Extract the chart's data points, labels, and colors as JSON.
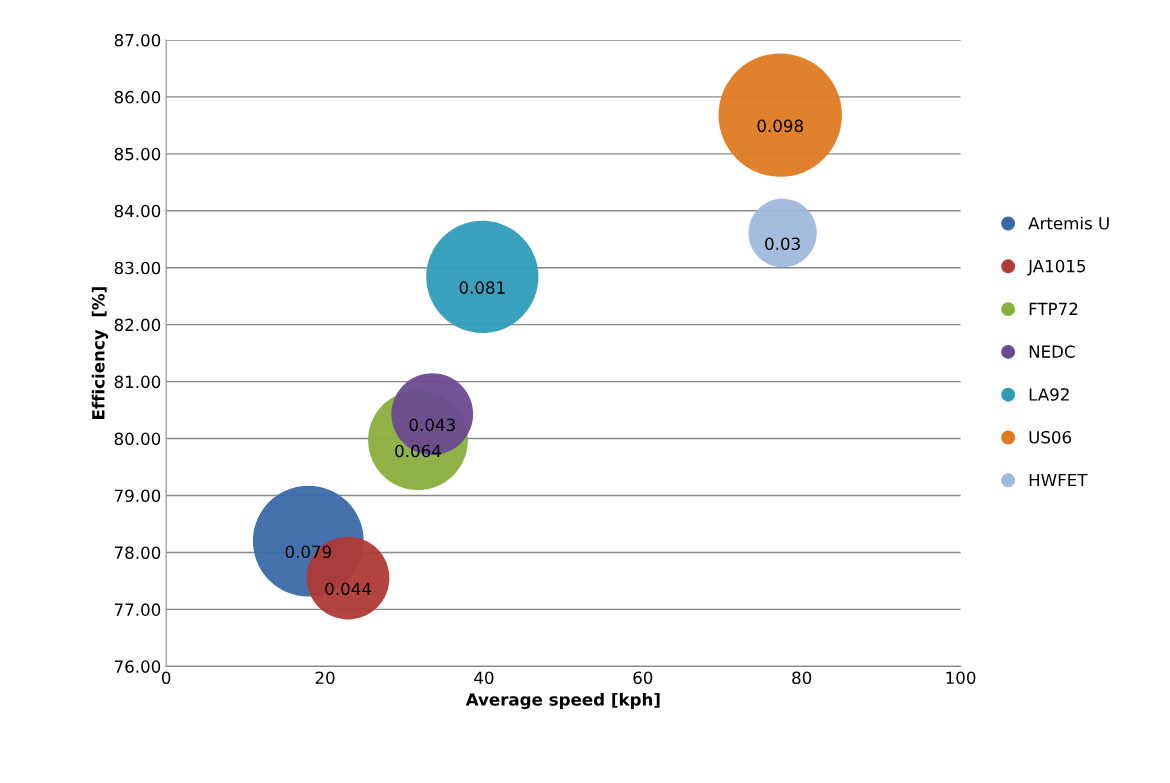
{
  "chart_data": {
    "type": "bubble",
    "xlabel": "Average speed [kph]",
    "ylabel": "Efficiency  [%]",
    "xlim": [
      0,
      100
    ],
    "xticks": [
      0,
      20,
      40,
      60,
      80,
      100
    ],
    "ylim": [
      76,
      87
    ],
    "yticks": [
      {
        "value": 76,
        "label": "76.00"
      },
      {
        "value": 77,
        "label": "77.00"
      },
      {
        "value": 78,
        "label": "78.00"
      },
      {
        "value": 79,
        "label": "79.00"
      },
      {
        "value": 80,
        "label": "80.00"
      },
      {
        "value": 81,
        "label": "81.00"
      },
      {
        "value": 82,
        "label": "82.00"
      },
      {
        "value": 83,
        "label": "83.00"
      },
      {
        "value": 84,
        "label": "84.00"
      },
      {
        "value": 85,
        "label": "85.00"
      },
      {
        "value": 86,
        "label": "86.00"
      },
      {
        "value": 87,
        "label": "87.00"
      }
    ],
    "grid": "y",
    "legend": "right",
    "series": [
      {
        "name": "Artemis U",
        "color": "#3a6aa8",
        "x": [
          17.9
        ],
        "values": [
          78.2
        ],
        "sizes": [
          0.079
        ],
        "value_labels": [
          "0.079"
        ]
      },
      {
        "name": "JA1015",
        "color": "#b03a36",
        "x": [
          22.9
        ],
        "values": [
          77.55
        ],
        "sizes": [
          0.044
        ],
        "value_labels": [
          "0.044"
        ]
      },
      {
        "name": "FTP72",
        "color": "#8aae3c",
        "x": [
          31.7
        ],
        "values": [
          79.97
        ],
        "sizes": [
          0.064
        ],
        "value_labels": [
          "0.064"
        ]
      },
      {
        "name": "NEDC",
        "color": "#6b4a8f",
        "x": [
          33.5
        ],
        "values": [
          80.43
        ],
        "sizes": [
          0.043
        ],
        "value_labels": [
          "0.043"
        ]
      },
      {
        "name": "LA92",
        "color": "#2e9cb8",
        "x": [
          39.8
        ],
        "values": [
          82.84
        ],
        "sizes": [
          0.081
        ],
        "value_labels": [
          "0.081"
        ]
      },
      {
        "name": "US06",
        "color": "#e07a20",
        "x": [
          77.3
        ],
        "values": [
          85.68
        ],
        "sizes": [
          0.098
        ],
        "value_labels": [
          "0.098"
        ]
      },
      {
        "name": "HWFET",
        "color": "#9fb8dc",
        "x": [
          77.6
        ],
        "values": [
          83.61
        ],
        "sizes": [
          0.03
        ],
        "value_labels": [
          "0.03"
        ]
      }
    ]
  }
}
